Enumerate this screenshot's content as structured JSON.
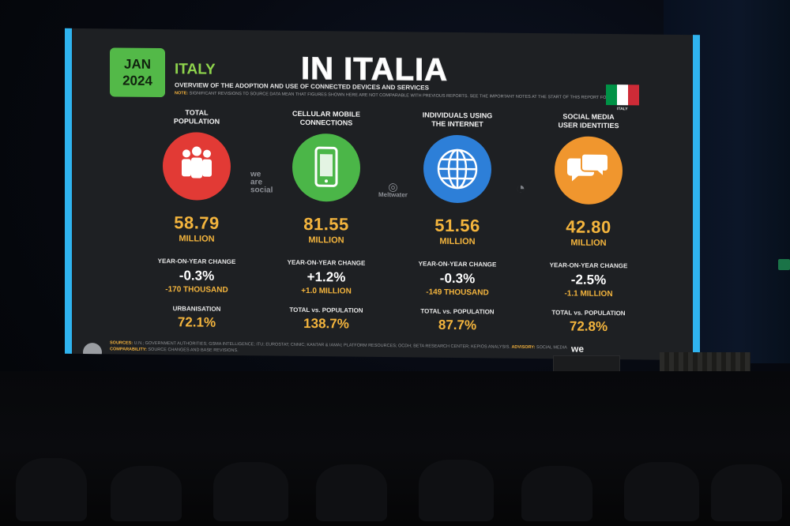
{
  "slide": {
    "date_line1": "JAN",
    "date_line2": "2024",
    "country": "ITALY",
    "headline": "IN ITALIA",
    "subtitle": "OVERVIEW OF THE ADOPTION AND USE OF CONNECTED DEVICES AND SERVICES",
    "note_label": "NOTE:",
    "note_text": "SIGNIFICANT REVISIONS TO SOURCE DATA MEAN THAT FIGURES SHOWN HERE ARE NOT COMPARABLE WITH PREVIOUS REPORTS. SEE THE IMPORTANT NOTES AT THE START OF THIS REPORT FOR DETAILS.",
    "flag_caption": "ITALY",
    "flag_colors": [
      "#009246",
      "#ffffff",
      "#ce2b37"
    ],
    "sources_label": "SOURCES:",
    "sources_text": "U.N.; GOVERNMENT AUTHORITIES; GSMA INTELLIGENCE; ITU; EUROSTAT; CNNIC; KANTAR & IAMAI; PLATFORM RESOURCES; OCDH; BETA RESEARCH CENTER; KEPIOS ANALYSIS.",
    "advisory_label": "ADVISORY:",
    "advisory_text": "SOCIAL MEDIA USER IDENTITIES MAY NOT REPRESENT UNIQUE INDIVIDUALS.",
    "comparability_label": "COMPARABILITY:",
    "comparability_text": "SOURCE CHANGES AND BASE REVISIONS.",
    "footer_brand": "we",
    "logo_weare_1": "we",
    "logo_weare_2": "are",
    "logo_weare_3": "social",
    "logo_meltwater": "Meltwater",
    "columns": [
      {
        "title_line1": "TOTAL",
        "title_line2": "POPULATION",
        "icon": "people-icon",
        "icon_color": "#e23a35",
        "value": "58.79",
        "unit": "MILLION",
        "yoy_label": "YEAR-ON-YEAR CHANGE",
        "yoy_pct": "-0.3%",
        "yoy_abs": "-170 THOUSAND",
        "foot_label": "URBANISATION",
        "foot_value": "72.1%"
      },
      {
        "title_line1": "CELLULAR MOBILE",
        "title_line2": "CONNECTIONS",
        "icon": "mobile-phone-icon",
        "icon_color": "#4bb648",
        "value": "81.55",
        "unit": "MILLION",
        "yoy_label": "YEAR-ON-YEAR CHANGE",
        "yoy_pct": "+1.2%",
        "yoy_abs": "+1.0 MILLION",
        "foot_label": "TOTAL vs. POPULATION",
        "foot_value": "138.7%"
      },
      {
        "title_line1": "INDIVIDUALS USING",
        "title_line2": "THE INTERNET",
        "icon": "globe-icon",
        "icon_color": "#2d7fd8",
        "value": "51.56",
        "unit": "MILLION",
        "yoy_label": "YEAR-ON-YEAR CHANGE",
        "yoy_pct": "-0.3%",
        "yoy_abs": "-149 THOUSAND",
        "foot_label": "TOTAL vs. POPULATION",
        "foot_value": "87.7%"
      },
      {
        "title_line1": "SOCIAL MEDIA",
        "title_line2": "USER IDENTITIES",
        "icon": "chat-bubbles-icon",
        "icon_color": "#f0962e",
        "value": "42.80",
        "unit": "MILLION",
        "yoy_label": "YEAR-ON-YEAR CHANGE",
        "yoy_pct": "-2.5%",
        "yoy_abs": "-1.1 MILLION",
        "foot_label": "TOTAL vs. POPULATION",
        "foot_value": "72.8%"
      }
    ]
  }
}
